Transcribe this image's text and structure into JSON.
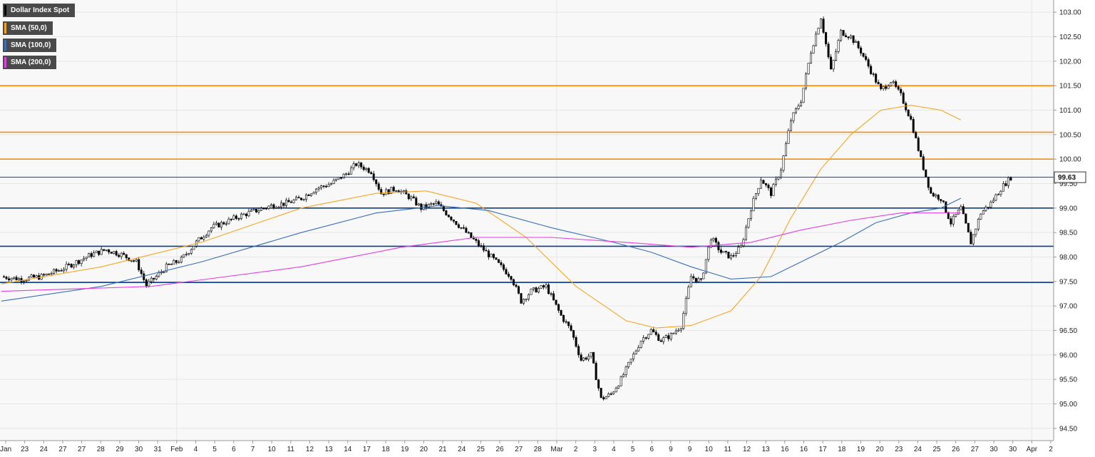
{
  "chart_data": {
    "type": "candlestick",
    "instrument": "Dollar Index Spot",
    "last_price": "99.63",
    "colors": {
      "background": "#f8f8f8",
      "grid": "#e6e6e6",
      "candle_up": "#ffffff",
      "candle_down": "#000000",
      "sma50": "#f5a623",
      "sma100": "#3a6fb8",
      "sma200": "#e040e0",
      "level_orange": "#ff8c00",
      "level_blue": "#0a3d91",
      "last_price_line": "#1a2a4a"
    },
    "legend": [
      {
        "name": "Dollar Index Spot",
        "color": "#000000"
      },
      {
        "name": "SMA (50,0)",
        "color": "#f5a623"
      },
      {
        "name": "SMA (100,0)",
        "color": "#3a6fb8"
      },
      {
        "name": "SMA (200,0)",
        "color": "#e040e0"
      }
    ],
    "y_axis": {
      "range": [
        94.25,
        103.25
      ],
      "ticks": [
        "94.50",
        "95.00",
        "95.50",
        "96.00",
        "96.50",
        "97.00",
        "97.50",
        "98.00",
        "98.50",
        "99.00",
        "99.50",
        "100.00",
        "100.50",
        "101.00",
        "101.50",
        "102.00",
        "102.50",
        "103.00"
      ]
    },
    "x_axis": {
      "labels": [
        "Jan",
        "23",
        "24",
        "27",
        "27",
        "28",
        "29",
        "30",
        "31",
        "Feb",
        "4",
        "5",
        "6",
        "7",
        "10",
        "11",
        "12",
        "13",
        "14",
        "17",
        "18",
        "19",
        "20",
        "21",
        "24",
        "25",
        "26",
        "27",
        "28",
        "Mar",
        "2",
        "3",
        "4",
        "5",
        "6",
        "9",
        "9",
        "10",
        "11",
        "12",
        "13",
        "16",
        "16",
        "17",
        "18",
        "19",
        "20",
        "23",
        "24",
        "25",
        "26",
        "27",
        "30",
        "30",
        "Apr",
        "2"
      ]
    },
    "horizontal_levels": [
      {
        "value": 101.5,
        "color": "orange"
      },
      {
        "value": 100.55,
        "color": "orange"
      },
      {
        "value": 100.0,
        "color": "orange"
      },
      {
        "value": 99.0,
        "color": "blue"
      },
      {
        "value": 98.22,
        "color": "blue"
      },
      {
        "value": 97.48,
        "color": "blue"
      }
    ],
    "series_close_path": [
      [
        0,
        97.6
      ],
      [
        8,
        97.55
      ],
      [
        16,
        97.6
      ],
      [
        24,
        97.75
      ],
      [
        30,
        97.9
      ],
      [
        36,
        98.05
      ],
      [
        42,
        98.15
      ],
      [
        48,
        98.05
      ],
      [
        54,
        97.9
      ],
      [
        58,
        97.42
      ],
      [
        62,
        97.6
      ],
      [
        66,
        97.8
      ],
      [
        72,
        97.95
      ],
      [
        78,
        98.3
      ],
      [
        84,
        98.6
      ],
      [
        90,
        98.72
      ],
      [
        96,
        98.85
      ],
      [
        102,
        98.95
      ],
      [
        108,
        99.05
      ],
      [
        114,
        99.1
      ],
      [
        120,
        99.2
      ],
      [
        126,
        99.4
      ],
      [
        132,
        99.5
      ],
      [
        138,
        99.7
      ],
      [
        142,
        99.9
      ],
      [
        148,
        99.75
      ],
      [
        152,
        99.3
      ],
      [
        158,
        99.4
      ],
      [
        164,
        99.2
      ],
      [
        168,
        99.0
      ],
      [
        174,
        99.1
      ],
      [
        180,
        98.8
      ],
      [
        186,
        98.5
      ],
      [
        192,
        98.2
      ],
      [
        198,
        97.9
      ],
      [
        204,
        97.6
      ],
      [
        208,
        97.1
      ],
      [
        212,
        97.3
      ],
      [
        218,
        97.4
      ],
      [
        224,
        96.8
      ],
      [
        228,
        96.5
      ],
      [
        232,
        95.9
      ],
      [
        236,
        96.0
      ],
      [
        240,
        95.1
      ],
      [
        244,
        95.2
      ],
      [
        248,
        95.5
      ],
      [
        252,
        95.9
      ],
      [
        256,
        96.3
      ],
      [
        260,
        96.5
      ],
      [
        264,
        96.3
      ],
      [
        268,
        96.4
      ],
      [
        272,
        96.6
      ],
      [
        276,
        97.6
      ],
      [
        280,
        97.5
      ],
      [
        284,
        98.4
      ],
      [
        288,
        98.1
      ],
      [
        292,
        98.0
      ],
      [
        296,
        98.2
      ],
      [
        300,
        99.0
      ],
      [
        304,
        99.6
      ],
      [
        308,
        99.3
      ],
      [
        312,
        99.8
      ],
      [
        316,
        100.8
      ],
      [
        320,
        101.2
      ],
      [
        324,
        102.2
      ],
      [
        328,
        102.9
      ],
      [
        332,
        101.8
      ],
      [
        336,
        102.6
      ],
      [
        340,
        102.5
      ],
      [
        344,
        102.2
      ],
      [
        348,
        101.8
      ],
      [
        352,
        101.4
      ],
      [
        356,
        101.6
      ],
      [
        360,
        101.3
      ],
      [
        364,
        100.8
      ],
      [
        368,
        100.0
      ],
      [
        372,
        99.3
      ],
      [
        376,
        99.2
      ],
      [
        380,
        98.7
      ],
      [
        384,
        99.0
      ],
      [
        388,
        98.3
      ],
      [
        392,
        98.9
      ],
      [
        396,
        99.1
      ],
      [
        400,
        99.4
      ],
      [
        404,
        99.63
      ]
    ],
    "sma50_path": [
      [
        0,
        97.45
      ],
      [
        40,
        97.8
      ],
      [
        80,
        98.3
      ],
      [
        120,
        99.0
      ],
      [
        150,
        99.3
      ],
      [
        170,
        99.35
      ],
      [
        190,
        99.1
      ],
      [
        210,
        98.4
      ],
      [
        230,
        97.4
      ],
      [
        250,
        96.7
      ],
      [
        262,
        96.55
      ],
      [
        276,
        96.6
      ],
      [
        292,
        96.9
      ],
      [
        304,
        97.6
      ],
      [
        316,
        98.8
      ],
      [
        328,
        99.8
      ],
      [
        340,
        100.5
      ],
      [
        352,
        101.0
      ],
      [
        364,
        101.1
      ],
      [
        376,
        101.0
      ],
      [
        384,
        100.8
      ]
    ],
    "sma100_path": [
      [
        0,
        97.1
      ],
      [
        40,
        97.4
      ],
      [
        80,
        97.9
      ],
      [
        120,
        98.5
      ],
      [
        150,
        98.9
      ],
      [
        175,
        99.05
      ],
      [
        195,
        98.95
      ],
      [
        220,
        98.6
      ],
      [
        245,
        98.3
      ],
      [
        260,
        98.1
      ],
      [
        276,
        97.8
      ],
      [
        292,
        97.55
      ],
      [
        308,
        97.6
      ],
      [
        320,
        97.9
      ],
      [
        336,
        98.3
      ],
      [
        350,
        98.7
      ],
      [
        364,
        98.9
      ],
      [
        376,
        99.0
      ],
      [
        384,
        99.2
      ]
    ],
    "sma200_path": [
      [
        0,
        97.3
      ],
      [
        60,
        97.4
      ],
      [
        120,
        97.8
      ],
      [
        160,
        98.2
      ],
      [
        190,
        98.4
      ],
      [
        220,
        98.4
      ],
      [
        250,
        98.3
      ],
      [
        276,
        98.2
      ],
      [
        300,
        98.3
      ],
      [
        320,
        98.55
      ],
      [
        340,
        98.75
      ],
      [
        360,
        98.9
      ],
      [
        384,
        98.9
      ]
    ]
  }
}
